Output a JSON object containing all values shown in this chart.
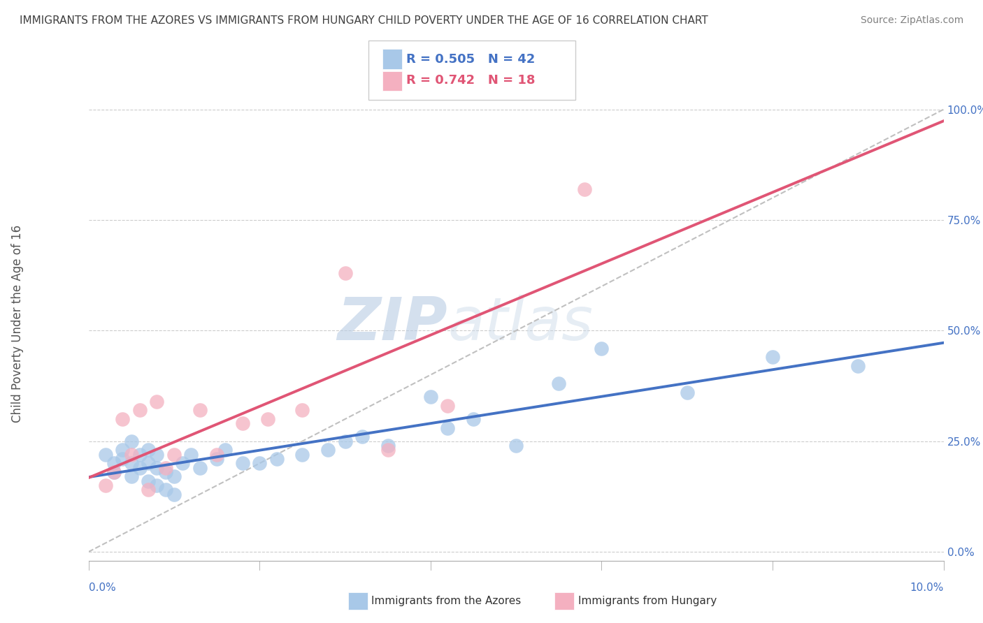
{
  "title": "IMMIGRANTS FROM THE AZORES VS IMMIGRANTS FROM HUNGARY CHILD POVERTY UNDER THE AGE OF 16 CORRELATION CHART",
  "source": "Source: ZipAtlas.com",
  "ylabel": "Child Poverty Under the Age of 16",
  "yticks_labels": [
    "0.0%",
    "25.0%",
    "50.0%",
    "75.0%",
    "100.0%"
  ],
  "ytick_vals": [
    0.0,
    0.25,
    0.5,
    0.75,
    1.0
  ],
  "xlim": [
    0,
    0.1
  ],
  "ylim": [
    -0.02,
    1.05
  ],
  "azores_R": 0.505,
  "azores_N": 42,
  "hungary_R": 0.742,
  "hungary_N": 18,
  "azores_color": "#a8c8e8",
  "hungary_color": "#f4b0c0",
  "azores_line_color": "#4472c4",
  "hungary_line_color": "#e05575",
  "dashed_line_color": "#c0c0c0",
  "title_color": "#404040",
  "watermark_zip_color": "#d0dff0",
  "watermark_atlas_color": "#c0d0e0",
  "background_color": "#ffffff",
  "azores_x": [
    0.002,
    0.003,
    0.003,
    0.004,
    0.004,
    0.005,
    0.005,
    0.005,
    0.006,
    0.006,
    0.007,
    0.007,
    0.007,
    0.008,
    0.008,
    0.008,
    0.009,
    0.009,
    0.01,
    0.01,
    0.011,
    0.012,
    0.013,
    0.015,
    0.016,
    0.018,
    0.02,
    0.022,
    0.025,
    0.028,
    0.03,
    0.032,
    0.035,
    0.04,
    0.042,
    0.045,
    0.05,
    0.055,
    0.06,
    0.07,
    0.08,
    0.09
  ],
  "azores_y": [
    0.22,
    0.2,
    0.18,
    0.21,
    0.23,
    0.2,
    0.17,
    0.25,
    0.19,
    0.22,
    0.16,
    0.2,
    0.23,
    0.15,
    0.19,
    0.22,
    0.14,
    0.18,
    0.13,
    0.17,
    0.2,
    0.22,
    0.19,
    0.21,
    0.23,
    0.2,
    0.2,
    0.21,
    0.22,
    0.23,
    0.25,
    0.26,
    0.24,
    0.35,
    0.28,
    0.3,
    0.24,
    0.38,
    0.46,
    0.36,
    0.44,
    0.42
  ],
  "hungary_x": [
    0.002,
    0.003,
    0.004,
    0.005,
    0.006,
    0.007,
    0.008,
    0.009,
    0.01,
    0.013,
    0.015,
    0.018,
    0.021,
    0.025,
    0.03,
    0.035,
    0.042,
    0.058
  ],
  "hungary_y": [
    0.15,
    0.18,
    0.3,
    0.22,
    0.32,
    0.14,
    0.34,
    0.19,
    0.22,
    0.32,
    0.22,
    0.29,
    0.3,
    0.32,
    0.63,
    0.23,
    0.33,
    0.82
  ]
}
